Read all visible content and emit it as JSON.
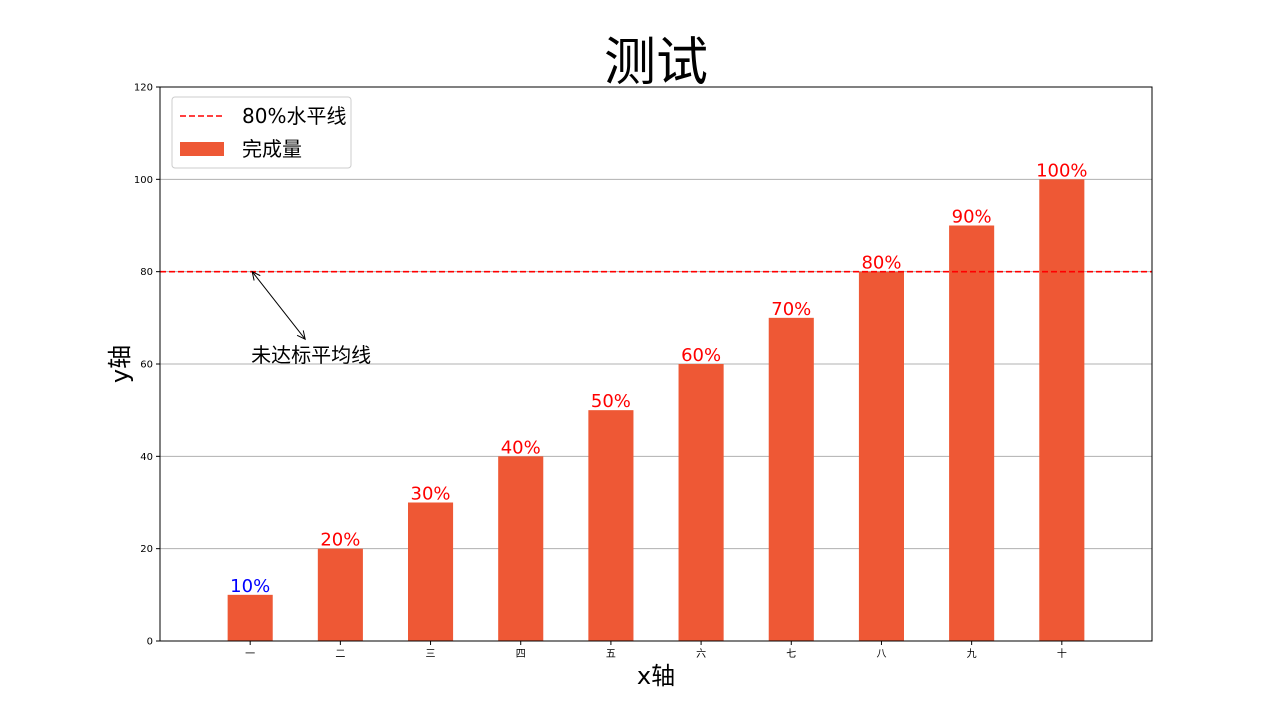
{
  "chart_data": {
    "type": "bar",
    "title": "测试",
    "xlabel": "x轴",
    "ylabel": "y轴",
    "categories": [
      "一",
      "二",
      "三",
      "四",
      "五",
      "六",
      "七",
      "八",
      "九",
      "十"
    ],
    "series": [
      {
        "name": "完成量",
        "values": [
          10,
          20,
          30,
          40,
          50,
          60,
          70,
          80,
          90,
          100
        ],
        "color": "#EE5835"
      }
    ],
    "data_labels": [
      "10%",
      "20%",
      "30%",
      "40%",
      "50%",
      "60%",
      "70%",
      "80%",
      "90%",
      "100%"
    ],
    "data_label_colors": [
      "#0000FF",
      "#FF0000",
      "#FF0000",
      "#FF0000",
      "#FF0000",
      "#FF0000",
      "#FF0000",
      "#FF0000",
      "#FF0000",
      "#FF0000"
    ],
    "ylim": [
      0,
      120
    ],
    "yticks": [
      0,
      20,
      40,
      60,
      80,
      100,
      120
    ],
    "grid": "horizontal",
    "reference_line": {
      "name": "80%水平线",
      "value": 80,
      "color": "#FF0000",
      "style": "dashed"
    },
    "annotation": {
      "text": "未达标平均线",
      "arrow_from": {
        "category_index": 0,
        "y": 64.5
      },
      "arrow_to": {
        "category_index": 0,
        "y": 80
      }
    },
    "legend": {
      "position": "upper-left",
      "entries": [
        "80%水平线",
        "完成量"
      ]
    }
  }
}
